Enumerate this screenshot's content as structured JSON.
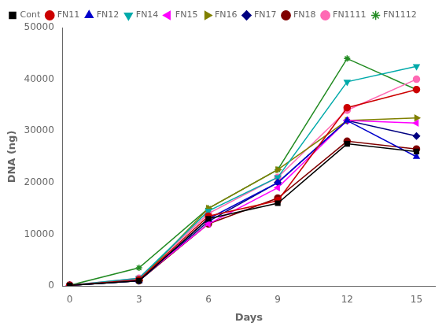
{
  "chart_data": {
    "type": "line",
    "x": [
      0,
      3,
      6,
      9,
      12,
      15
    ],
    "series": [
      {
        "name": "Cont",
        "color": "#000000",
        "marker": "square",
        "values": [
          100,
          1000,
          13000,
          16000,
          27500,
          26000
        ]
      },
      {
        "name": "FN11",
        "color": "#cc0000",
        "marker": "circle",
        "values": [
          100,
          1200,
          13500,
          16500,
          34500,
          38000
        ]
      },
      {
        "name": "FN12",
        "color": "#0000cc",
        "marker": "triangle_up",
        "values": [
          100,
          1000,
          13000,
          20000,
          32000,
          25000
        ]
      },
      {
        "name": "FN14",
        "color": "#00aaaa",
        "marker": "triangle_down",
        "values": [
          100,
          1500,
          14500,
          21000,
          39500,
          42500
        ]
      },
      {
        "name": "FN15",
        "color": "#ff00ff",
        "marker": "triangle_left",
        "values": [
          100,
          1200,
          12000,
          19000,
          32000,
          31500
        ]
      },
      {
        "name": "FN16",
        "color": "#808000",
        "marker": "triangle_right",
        "values": [
          100,
          1000,
          15000,
          22500,
          32000,
          32500
        ]
      },
      {
        "name": "FN17",
        "color": "#000080",
        "marker": "diamond",
        "values": [
          100,
          1000,
          12500,
          20000,
          32000,
          29000
        ]
      },
      {
        "name": "FN18",
        "color": "#800000",
        "marker": "circle",
        "values": [
          100,
          1000,
          12000,
          17000,
          28000,
          26500
        ]
      },
      {
        "name": "FN1111",
        "color": "#ff69b4",
        "marker": "circle",
        "values": [
          100,
          1500,
          14000,
          21000,
          34000,
          40000
        ]
      },
      {
        "name": "FN1112",
        "color": "#228B22",
        "marker": "star",
        "values": [
          100,
          3500,
          15000,
          22500,
          44000,
          38000
        ]
      }
    ],
    "xlim": [
      -0.3,
      15.8
    ],
    "ylim": [
      0,
      50000
    ],
    "xticks": [
      0,
      3,
      6,
      9,
      12,
      15
    ],
    "yticks": [
      0,
      10000,
      20000,
      30000,
      40000,
      50000
    ],
    "xlabel": "Days",
    "ylabel": "DNA (ng)",
    "grid": false,
    "legend": "upper left"
  }
}
